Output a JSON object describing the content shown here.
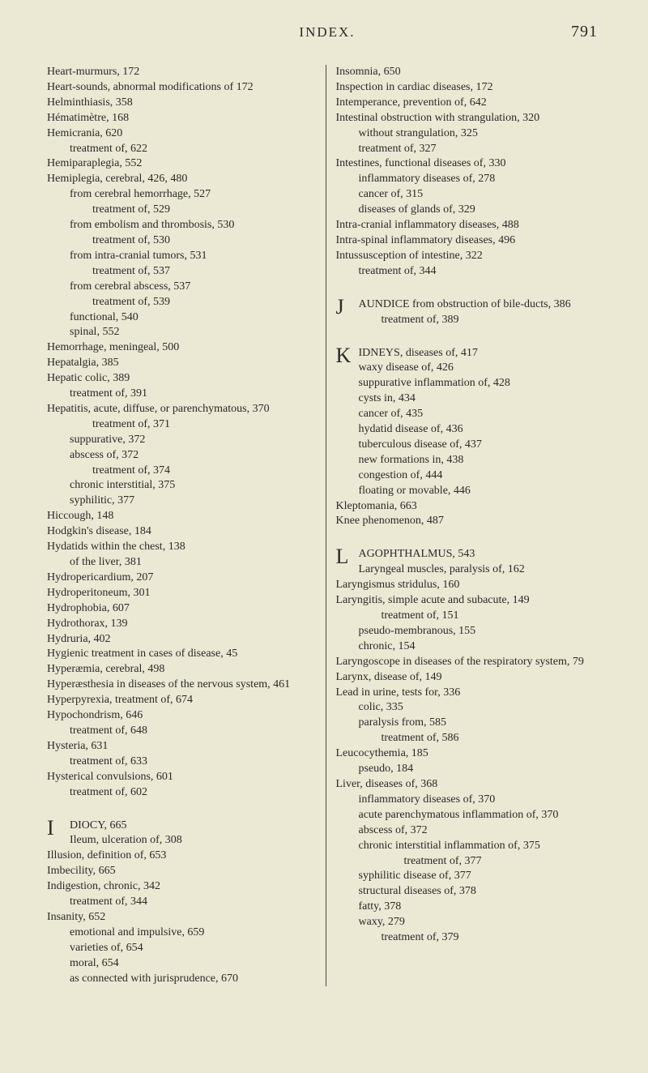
{
  "header": {
    "title": "INDEX.",
    "page": "791"
  },
  "colors": {
    "background": "#ebe8d4",
    "text": "#2a2a28",
    "divider": "#4a4a3a"
  },
  "leftColumn": [
    {
      "text": "Heart-murmurs, 172",
      "level": 0
    },
    {
      "text": "Heart-sounds, abnormal modifications of 172",
      "level": 0
    },
    {
      "text": "Helminthiasis, 358",
      "level": 0
    },
    {
      "text": "Hématimètre, 168",
      "level": 0
    },
    {
      "text": "Hemicrania, 620",
      "level": 0
    },
    {
      "text": "treatment of, 622",
      "level": 1
    },
    {
      "text": "Hemiparaplegia, 552",
      "level": 0
    },
    {
      "text": "Hemiplegia, cerebral, 426, 480",
      "level": 0
    },
    {
      "text": "from cerebral hemorrhage, 527",
      "level": 1
    },
    {
      "text": "treatment of, 529",
      "level": 2
    },
    {
      "text": "from embolism and thrombosis, 530",
      "level": 1
    },
    {
      "text": "treatment of, 530",
      "level": 2
    },
    {
      "text": "from intra-cranial tumors, 531",
      "level": 1
    },
    {
      "text": "treatment of, 537",
      "level": 2
    },
    {
      "text": "from cerebral abscess, 537",
      "level": 1
    },
    {
      "text": "treatment of, 539",
      "level": 2
    },
    {
      "text": "functional, 540",
      "level": 1
    },
    {
      "text": "spinal, 552",
      "level": 1
    },
    {
      "text": "Hemorrhage, meningeal, 500",
      "level": 0
    },
    {
      "text": "Hepatalgia, 385",
      "level": 0
    },
    {
      "text": "Hepatic colic, 389",
      "level": 0
    },
    {
      "text": "treatment of, 391",
      "level": 1
    },
    {
      "text": "Hepatitis, acute, diffuse, or parenchymatous, 370",
      "level": 0
    },
    {
      "text": "treatment of, 371",
      "level": 2
    },
    {
      "text": "suppurative, 372",
      "level": 1
    },
    {
      "text": "abscess of, 372",
      "level": 1
    },
    {
      "text": "treatment of, 374",
      "level": 2
    },
    {
      "text": "chronic interstitial, 375",
      "level": 1
    },
    {
      "text": "syphilitic, 377",
      "level": 1
    },
    {
      "text": "Hiccough, 148",
      "level": 0
    },
    {
      "text": "Hodgkin's disease, 184",
      "level": 0
    },
    {
      "text": "Hydatids within the chest, 138",
      "level": 0
    },
    {
      "text": "of the liver, 381",
      "level": 1
    },
    {
      "text": "Hydropericardium, 207",
      "level": 0
    },
    {
      "text": "Hydroperitoneum, 301",
      "level": 0
    },
    {
      "text": "Hydrophobia, 607",
      "level": 0
    },
    {
      "text": "Hydrothorax, 139",
      "level": 0
    },
    {
      "text": "Hydruria, 402",
      "level": 0
    },
    {
      "text": "Hygienic treatment in cases of disease, 45",
      "level": 0
    },
    {
      "text": "Hyperæmia, cerebral, 498",
      "level": 0
    },
    {
      "text": "Hyperæsthesia in diseases of the nervous system, 461",
      "level": 0
    },
    {
      "text": "Hyperpyrexia, treatment of, 674",
      "level": 0
    },
    {
      "text": "Hypochondrism, 646",
      "level": 0
    },
    {
      "text": "treatment of, 648",
      "level": 1
    },
    {
      "text": "Hysteria, 631",
      "level": 0
    },
    {
      "text": "treatment of, 633",
      "level": 1
    },
    {
      "text": "Hysterical convulsions, 601",
      "level": 0
    },
    {
      "text": "treatment of, 602",
      "level": 1
    }
  ],
  "leftColumnI": {
    "dropcap": "I",
    "first": "DIOCY, 665",
    "second": "Ileum, ulceration of, 308",
    "entries": [
      {
        "text": "Illusion, definition of, 653",
        "level": 0
      },
      {
        "text": "Imbecility, 665",
        "level": 0
      },
      {
        "text": "Indigestion, chronic, 342",
        "level": 0
      },
      {
        "text": "treatment of, 344",
        "level": 1
      },
      {
        "text": "Insanity, 652",
        "level": 0
      },
      {
        "text": "emotional and impulsive, 659",
        "level": 1
      },
      {
        "text": "varieties of, 654",
        "level": 1
      },
      {
        "text": "moral, 654",
        "level": 1
      },
      {
        "text": "as connected with jurisprudence, 670",
        "level": 1
      }
    ]
  },
  "rightColumnTop": [
    {
      "text": "Insomnia, 650",
      "level": 0
    },
    {
      "text": "Inspection in cardiac diseases, 172",
      "level": 0
    },
    {
      "text": "Intemperance, prevention of, 642",
      "level": 0
    },
    {
      "text": "Intestinal obstruction with strangulation, 320",
      "level": 0
    },
    {
      "text": "without strangulation, 325",
      "level": 1
    },
    {
      "text": "treatment of, 327",
      "level": 1
    },
    {
      "text": "Intestines, functional diseases of, 330",
      "level": 0
    },
    {
      "text": "inflammatory diseases of, 278",
      "level": 1
    },
    {
      "text": "cancer of, 315",
      "level": 1
    },
    {
      "text": "diseases of glands of, 329",
      "level": 1
    },
    {
      "text": "Intra-cranial inflammatory diseases, 488",
      "level": 0
    },
    {
      "text": "Intra-spinal inflammatory diseases, 496",
      "level": 0
    },
    {
      "text": "Intussusception of intestine, 322",
      "level": 0
    },
    {
      "text": "treatment of, 344",
      "level": 1
    }
  ],
  "rightColumnJ": {
    "dropcap": "J",
    "first": "AUNDICE from obstruction of bile-ducts, 386",
    "entries": [
      {
        "text": "treatment of, 389",
        "level": 2
      }
    ]
  },
  "rightColumnK": {
    "dropcap": "K",
    "first": "IDNEYS, diseases of, 417",
    "second": "waxy disease of, 426",
    "entries": [
      {
        "text": "suppurative inflammation of, 428",
        "level": 1
      },
      {
        "text": "cysts in, 434",
        "level": 1
      },
      {
        "text": "cancer of, 435",
        "level": 1
      },
      {
        "text": "hydatid disease of, 436",
        "level": 1
      },
      {
        "text": "tuberculous disease of, 437",
        "level": 1
      },
      {
        "text": "new formations in, 438",
        "level": 1
      },
      {
        "text": "congestion of, 444",
        "level": 1
      },
      {
        "text": "floating or movable, 446",
        "level": 1
      },
      {
        "text": "Kleptomania, 663",
        "level": 0
      },
      {
        "text": "Knee phenomenon, 487",
        "level": 0
      }
    ]
  },
  "rightColumnL": {
    "dropcap": "L",
    "first": "AGOPHTHALMUS, 543",
    "second": "Laryngeal muscles, paralysis of, 162",
    "entries": [
      {
        "text": "Laryngismus stridulus, 160",
        "level": 0
      },
      {
        "text": "Laryngitis, simple acute and subacute, 149",
        "level": 0
      },
      {
        "text": "treatment of, 151",
        "level": 2
      },
      {
        "text": "pseudo-membranous, 155",
        "level": 1
      },
      {
        "text": "chronic, 154",
        "level": 1
      },
      {
        "text": "Laryngoscope in diseases of the respiratory system, 79",
        "level": 0
      },
      {
        "text": "Larynx, disease of, 149",
        "level": 0
      },
      {
        "text": "Lead in urine, tests for, 336",
        "level": 0
      },
      {
        "text": "colic, 335",
        "level": 1
      },
      {
        "text": "paralysis from, 585",
        "level": 1
      },
      {
        "text": "treatment of, 586",
        "level": 2
      },
      {
        "text": "Leucocythemia, 185",
        "level": 0
      },
      {
        "text": "pseudo, 184",
        "level": 1
      },
      {
        "text": "Liver, diseases of, 368",
        "level": 0
      },
      {
        "text": "inflammatory diseases of, 370",
        "level": 1
      },
      {
        "text": "acute parenchymatous inflammation of, 370",
        "level": 1
      },
      {
        "text": "abscess of, 372",
        "level": 1
      },
      {
        "text": "chronic interstitial inflammation of, 375",
        "level": 1
      },
      {
        "text": "treatment of, 377",
        "level": 3
      },
      {
        "text": "syphilitic disease of, 377",
        "level": 1
      },
      {
        "text": "structural diseases of, 378",
        "level": 1
      },
      {
        "text": "fatty, 378",
        "level": 1
      },
      {
        "text": "waxy, 279",
        "level": 1
      },
      {
        "text": "treatment of, 379",
        "level": 2
      }
    ]
  }
}
